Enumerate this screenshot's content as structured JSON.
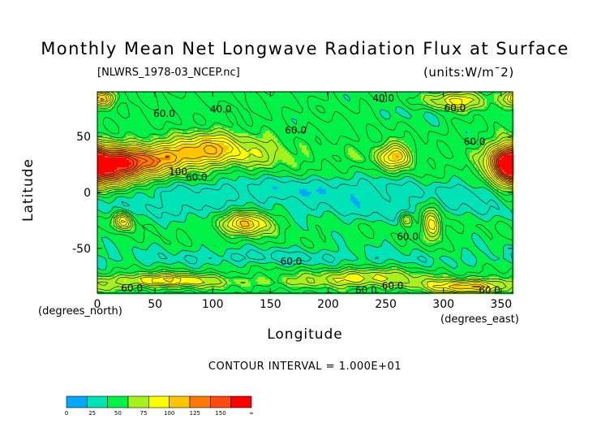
{
  "chart_data": {
    "type": "heatmap",
    "title": "Monthly Mean Net Longwave Radiation Flux at Surface",
    "subtitle": "[NLWRS_1978-03_NCEP.nc]",
    "units": "(units:W/m¯2)",
    "xlabel": "Longitude",
    "ylabel": "Latitude",
    "x_units_label": "(degrees_east)",
    "y_units_label": "(degrees_north)",
    "xlim": [
      0,
      360
    ],
    "ylim": [
      -90,
      90
    ],
    "x_ticks": [
      0,
      50,
      100,
      150,
      200,
      250,
      300,
      350
    ],
    "y_ticks": [
      50,
      0,
      -50
    ],
    "contour_interval_text": "CONTOUR INTERVAL = 1.000E+01",
    "contour_labels": [
      {
        "lon": 58,
        "lat": 70,
        "text": "60.0"
      },
      {
        "lon": 107,
        "lat": 74,
        "text": "40.0"
      },
      {
        "lon": 248,
        "lat": 84,
        "text": "40.0"
      },
      {
        "lon": 310,
        "lat": 75,
        "text": "60.0"
      },
      {
        "lon": 172,
        "lat": 55,
        "text": "60.0"
      },
      {
        "lon": 327,
        "lat": 45,
        "text": "60.0"
      },
      {
        "lon": 70,
        "lat": 18,
        "text": "100"
      },
      {
        "lon": 86,
        "lat": 13,
        "text": "60.0"
      },
      {
        "lon": 269,
        "lat": -40,
        "text": "60.0"
      },
      {
        "lon": 168,
        "lat": -62,
        "text": "60.0"
      },
      {
        "lon": 30,
        "lat": -86,
        "text": "60.0"
      },
      {
        "lon": 233,
        "lat": -88,
        "text": "60.0"
      },
      {
        "lon": 256,
        "lat": -84,
        "text": "60.0"
      },
      {
        "lon": 340,
        "lat": -88,
        "text": "60.0"
      }
    ],
    "colorbar": {
      "colors": [
        "#00a8ff",
        "#00e3b6",
        "#00f246",
        "#a6f01e",
        "#ffff00",
        "#ffc400",
        "#ff7a00",
        "#ff4a10",
        "#ff0000"
      ],
      "labels": [
        "0",
        "25",
        "50",
        "75",
        "100",
        "125",
        "150",
        "∞"
      ]
    },
    "fields": {
      "base": 55,
      "lat_band_profile": [
        {
          "lat": 90,
          "value": 58
        },
        {
          "lat": 75,
          "value": 62
        },
        {
          "lat": 60,
          "value": 58
        },
        {
          "lat": 45,
          "value": 62
        },
        {
          "lat": 30,
          "value": 70
        },
        {
          "lat": 15,
          "value": 58
        },
        {
          "lat": 0,
          "value": 42
        },
        {
          "lat": -15,
          "value": 44
        },
        {
          "lat": -30,
          "value": 58
        },
        {
          "lat": -45,
          "value": 56
        },
        {
          "lat": -60,
          "value": 46
        },
        {
          "lat": -72,
          "value": 62
        },
        {
          "lat": -80,
          "value": 78
        },
        {
          "lat": -90,
          "value": 60
        }
      ],
      "anomalies": [
        {
          "lon": 15,
          "lat": 22,
          "dlon": 20,
          "dlat": 12,
          "amp": 100
        },
        {
          "lon": 40,
          "lat": 28,
          "dlon": 28,
          "dlat": 10,
          "amp": 55
        },
        {
          "lon": 80,
          "lat": 35,
          "dlon": 25,
          "dlat": 9,
          "amp": 45
        },
        {
          "lon": 100,
          "lat": 45,
          "dlon": 18,
          "dlat": 10,
          "amp": 35
        },
        {
          "lon": 135,
          "lat": 38,
          "dlon": 25,
          "dlat": 10,
          "amp": 25
        },
        {
          "lon": 355,
          "lat": 25,
          "dlon": 10,
          "dlat": 14,
          "amp": 100
        },
        {
          "lon": 258,
          "lat": 33,
          "dlon": 10,
          "dlat": 8,
          "amp": 60
        },
        {
          "lon": 312,
          "lat": 82,
          "dlon": 20,
          "dlat": 6,
          "amp": 55
        },
        {
          "lon": 5,
          "lat": 84,
          "dlon": 8,
          "dlat": 5,
          "amp": 70
        },
        {
          "lon": 130,
          "lat": -27,
          "dlon": 15,
          "dlat": 8,
          "amp": 75
        },
        {
          "lon": 22,
          "lat": -25,
          "dlon": 6,
          "dlat": 6,
          "amp": 70
        },
        {
          "lon": 290,
          "lat": -28,
          "dlon": 6,
          "dlat": 12,
          "amp": 65
        },
        {
          "lon": 268,
          "lat": -24,
          "dlon": 4,
          "dlat": 4,
          "amp": 45
        },
        {
          "lon": 320,
          "lat": -85,
          "dlon": 25,
          "dlat": 4,
          "amp": 60
        },
        {
          "lon": 60,
          "lat": -78,
          "dlon": 30,
          "dlat": 4,
          "amp": 45
        },
        {
          "lon": 230,
          "lat": -75,
          "dlon": 30,
          "dlat": 5,
          "amp": 40
        },
        {
          "lon": 180,
          "lat": 5,
          "dlon": 60,
          "dlat": 8,
          "amp": -15
        },
        {
          "lon": 240,
          "lat": -15,
          "dlon": 30,
          "dlat": 10,
          "amp": -10
        },
        {
          "lon": 70,
          "lat": -12,
          "dlon": 25,
          "dlat": 8,
          "amp": -10
        },
        {
          "lon": 320,
          "lat": 0,
          "dlon": 15,
          "dlat": 10,
          "amp": -10
        },
        {
          "lon": 150,
          "lat": -57,
          "dlon": 50,
          "dlat": 4,
          "amp": -12
        },
        {
          "lon": 280,
          "lat": 72,
          "dlon": 25,
          "dlat": 6,
          "amp": -12
        }
      ]
    }
  }
}
